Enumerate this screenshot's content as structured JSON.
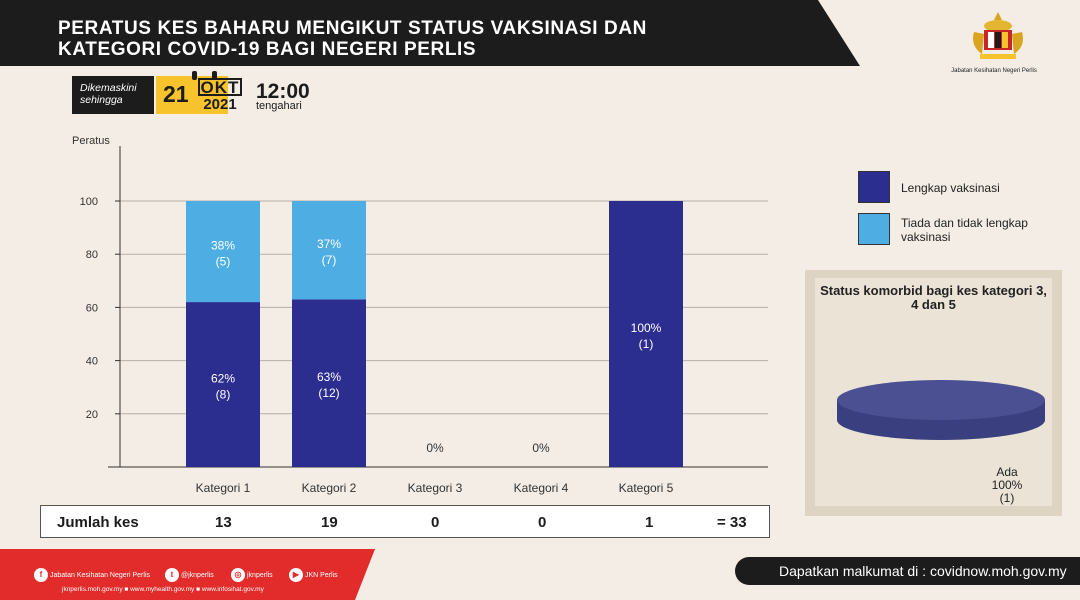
{
  "header": {
    "title_line1": "PERATUS KES BAHARU MENGIKUT STATUS VAKSINASI  DAN",
    "title_line2": "KATEGORI COVID-19 BAGI NEGERI PERLIS",
    "logo_text": "Jabatan Kesihatan Negeri Perlis"
  },
  "update": {
    "label_line1": "Dikemaskini",
    "label_line2": "sehingga",
    "day": "21",
    "month": "OKT",
    "year": "2021",
    "time": "12:00",
    "time_label": "tengahari"
  },
  "legend": {
    "full": "Lengkap vaksinasi",
    "partial": "Tiada dan tidak lengkap vaksinasi"
  },
  "comorbid": {
    "title": "Status komorbid bagi kes kategori 3, 4 dan 5",
    "label": "Ada",
    "percent": "100%",
    "count": "(1)"
  },
  "summary": {
    "label": "Jumlah kes",
    "totals": [
      "13",
      "19",
      "0",
      "0",
      "1"
    ],
    "grand_total": "= 33"
  },
  "footer": {
    "socials": [
      "Jabatan Kesihatan Negeri Perlis",
      "@jknperlis",
      "jknperlis",
      "JKN Perlis"
    ],
    "links": "jknperlis.moh.gov.my ■ www.myhealth.gov.my ■ www.infosihat.gov.my",
    "info": "Dapatkan malkumat di : covidnow.moh.gov.my"
  },
  "colors": {
    "full": "#2b2d8f",
    "partial": "#4eaee3",
    "banner": "#1c1c1c",
    "footer_red": "#e22b2b",
    "pie": "#4a5091"
  },
  "chart_data": {
    "type": "bar",
    "ylabel": "Peratus",
    "ylim": [
      0,
      120
    ],
    "yticks": [
      20,
      40,
      60,
      80,
      100
    ],
    "categories": [
      "Kategori 1",
      "Kategori 2",
      "Kategori 3",
      "Kategori 4",
      "Kategori 5"
    ],
    "series": [
      {
        "name": "Lengkap vaksinasi",
        "values": [
          62,
          63,
          0,
          0,
          100
        ],
        "labels": [
          "62%",
          "63%",
          "",
          "",
          "100%"
        ],
        "counts": [
          "(8)",
          "(12)",
          "",
          "",
          "(1)"
        ]
      },
      {
        "name": "Tiada dan tidak lengkap vaksinasi",
        "values": [
          38,
          37,
          0,
          0,
          0
        ],
        "labels": [
          "38%",
          "37%",
          "",
          "",
          ""
        ],
        "counts": [
          "(5)",
          "(7)",
          "",
          "",
          ""
        ]
      }
    ],
    "zero_labels": [
      "",
      "",
      "0%",
      "0%",
      ""
    ],
    "grid": true,
    "legend_position": "right"
  }
}
